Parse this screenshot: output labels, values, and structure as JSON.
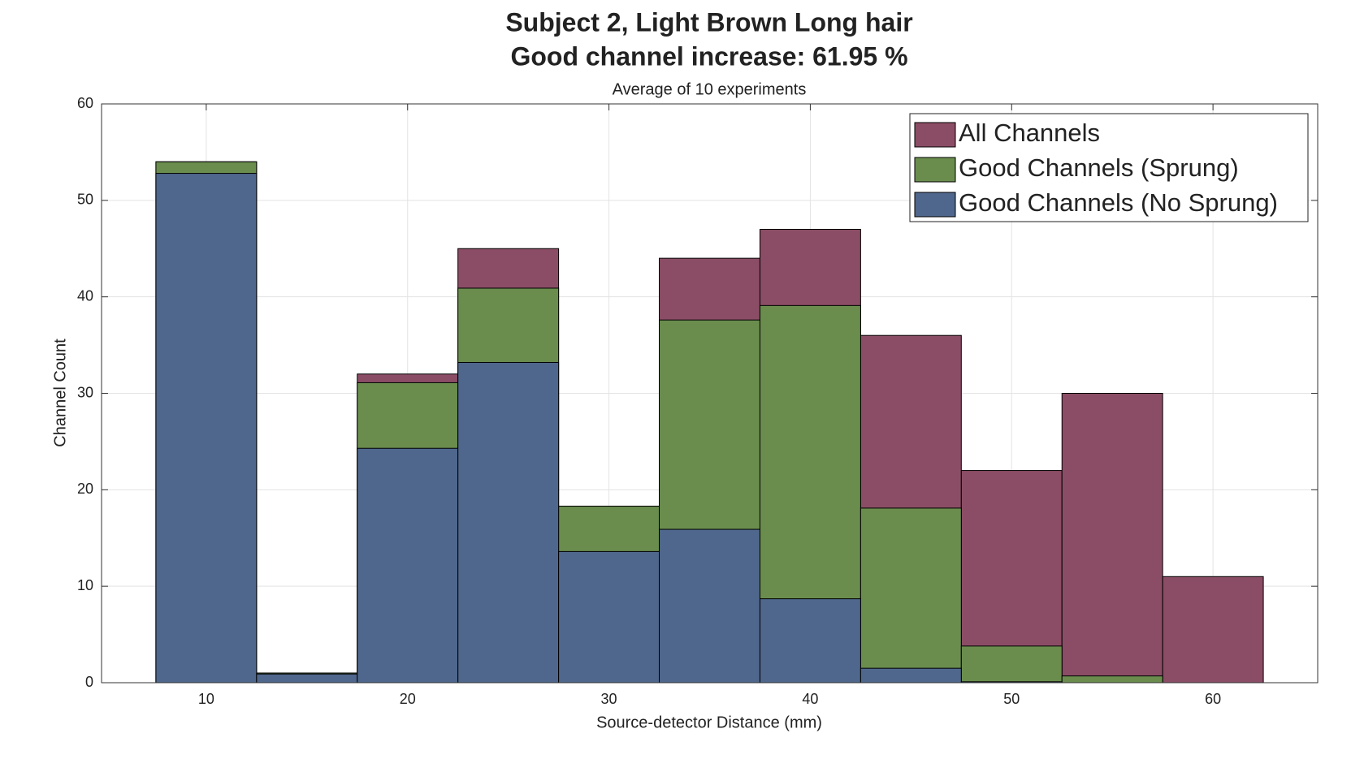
{
  "chart_data": {
    "type": "histogram",
    "title": [
      "Subject 2, Light Brown Long hair",
      "Good channel increase: 61.95 %"
    ],
    "subtitle": "Average of 10 experiments",
    "x_label": "Source-detector Distance (mm)",
    "y_label": "Channel Count",
    "bins": [
      7.5,
      12.5,
      17.5,
      22.5,
      27.5,
      32.5,
      37.5,
      42.5,
      47.5,
      52.5,
      57.5,
      62.5
    ],
    "series": [
      {
        "name": "All Channels",
        "color": "#8b4d65",
        "values": [
          54,
          1,
          32,
          45,
          18.3,
          44,
          47,
          36,
          22,
          30,
          11
        ]
      },
      {
        "name": "Good Channels (Sprung)",
        "color": "#6a8d4e",
        "values": [
          54,
          1,
          31.1,
          40.9,
          18.3,
          37.6,
          39.1,
          18.1,
          3.8,
          0.7,
          0
        ]
      },
      {
        "name": "Good Channels (No Sprung)",
        "color": "#4f678c",
        "values": [
          52.8,
          0.9,
          24.3,
          33.2,
          13.6,
          15.9,
          8.7,
          1.5,
          0.1,
          0,
          0
        ]
      }
    ],
    "xlim": [
      4.8,
      65.2
    ],
    "ylim": [
      0,
      60
    ],
    "xticks": [
      10,
      20,
      30,
      40,
      50,
      60
    ],
    "yticks": [
      0,
      10,
      20,
      30,
      40,
      50,
      60
    ],
    "grid": true,
    "legend": "northeast"
  }
}
